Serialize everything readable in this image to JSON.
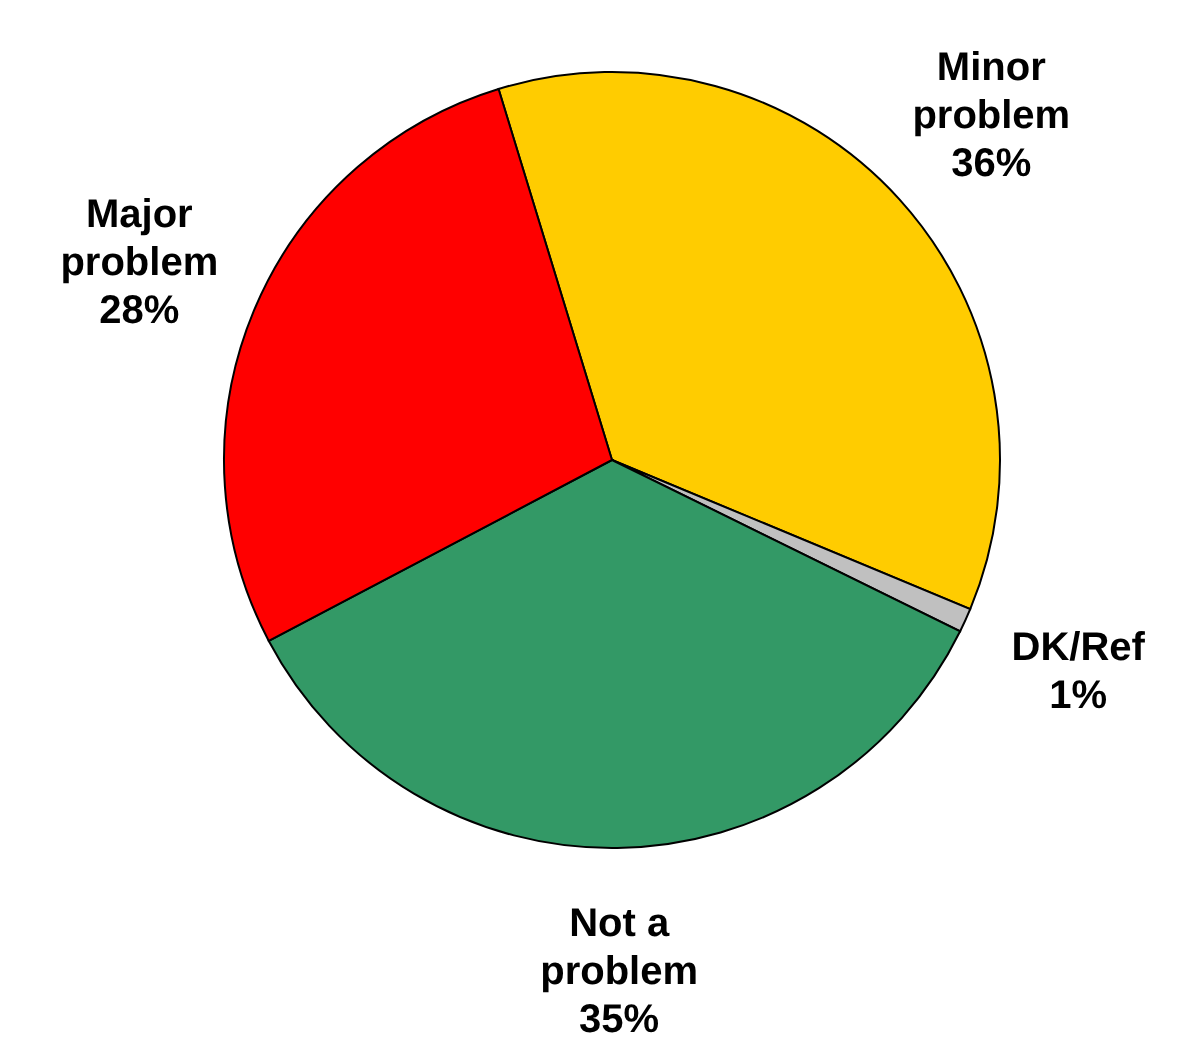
{
  "chart_data": {
    "type": "pie",
    "categories": [
      "Minor problem",
      "DK/Ref",
      "Not a problem",
      "Major problem"
    ],
    "values": [
      36,
      1,
      35,
      28
    ],
    "colors": [
      "#ffcc00",
      "#c0c0c0",
      "#339966",
      "#ff0000"
    ],
    "value_labels": [
      "36%",
      "1%",
      "35%",
      "28%"
    ]
  }
}
